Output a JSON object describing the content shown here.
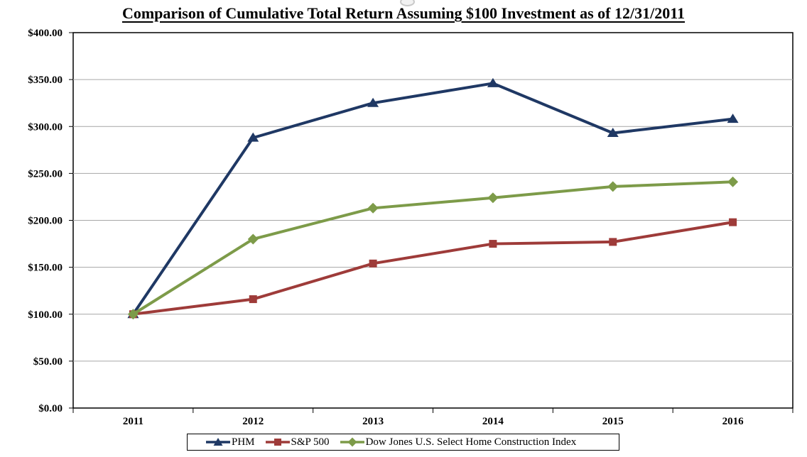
{
  "title": {
    "text": "Comparison of Cumulative Total Return Assuming $100 Investment as of 12/31/2011"
  },
  "chart_data": {
    "type": "line",
    "title": "Comparison of Cumulative Total Return Assuming $100 Investment as of 12/31/2011",
    "categories": [
      "2011",
      "2012",
      "2013",
      "2014",
      "2015",
      "2016"
    ],
    "series": [
      {
        "name": "PHM",
        "marker": "triangle",
        "color": "#1F3864",
        "values": [
          100,
          288,
          325,
          346,
          293,
          308
        ]
      },
      {
        "name": "S&P 500",
        "marker": "square",
        "color": "#9E3B39",
        "values": [
          100,
          116,
          154,
          175,
          177,
          198
        ]
      },
      {
        "name": "Dow Jones U.S. Select Home Construction Index",
        "marker": "diamond",
        "color": "#7D9B49",
        "values": [
          100,
          180,
          213,
          224,
          236,
          241
        ]
      }
    ],
    "xlabel": "",
    "ylabel": "",
    "ylim": [
      0,
      400
    ],
    "ytick_step": 50,
    "ytick_labels": [
      "$0.00",
      "$50.00",
      "$100.00",
      "$150.00",
      "$200.00",
      "$250.00",
      "$300.00",
      "$350.00",
      "$400.00"
    ],
    "grid": "horizontal",
    "legend_position": "bottom",
    "colors": {
      "gridline": "#A6A6A6",
      "border": "#000000",
      "text": "#000000",
      "background": "#FFFFFF"
    }
  }
}
